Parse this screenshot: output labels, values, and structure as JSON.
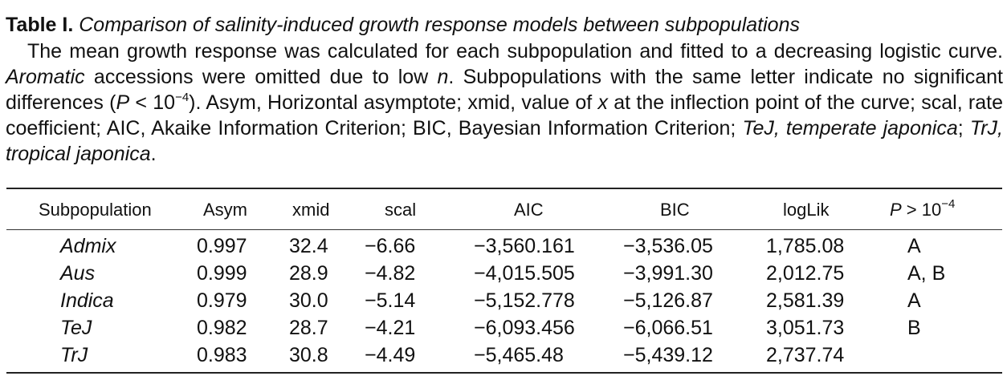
{
  "caption": {
    "label": "Table I.",
    "title": "Comparison of salinity-induced growth response models between subpopulations",
    "desc_1": "The mean growth response was calculated for each subpopulation and fitted to a decreasing logistic curve. ",
    "desc_aromatic": "Aromatic",
    "desc_2": " accessions were omitted due to low ",
    "desc_n": "n",
    "desc_3": ". Subpopulations with the same letter indicate no significant differences (",
    "desc_P": "P",
    "desc_4": " < 10",
    "desc_sup": "−4",
    "desc_5": "). Asym, Horizontal asymptote; xmid, value of ",
    "desc_x": "x",
    "desc_6": " at the inflection point of the curve; scal, rate coefficient; AIC, Akaike Information Criterion; BIC, Bayesian Information Criterion; ",
    "desc_tej": "TeJ, temperate japonica",
    "desc_7": "; ",
    "desc_trj": "TrJ, tropical japonica",
    "desc_8": "."
  },
  "table": {
    "headers": {
      "subpopulation": "Subpopulation",
      "asym": "Asym",
      "xmid": "xmid",
      "scal": "scal",
      "aic": "AIC",
      "bic": "BIC",
      "loglik": "logLik",
      "p_var": "P",
      "p_rest": " > 10",
      "p_sup": "−4"
    },
    "rows": [
      {
        "subpopulation": "Admix",
        "asym": "0.997",
        "xmid": "32.4",
        "scal": "−6.66",
        "aic": "−3,560.161",
        "bic": "−3,536.05",
        "loglik": "1,785.08",
        "p": "A"
      },
      {
        "subpopulation": "Aus",
        "asym": "0.999",
        "xmid": "28.9",
        "scal": "−4.82",
        "aic": "−4,015.505",
        "bic": "−3,991.30",
        "loglik": "2,012.75",
        "p": "A, B"
      },
      {
        "subpopulation": "Indica",
        "asym": "0.979",
        "xmid": "30.0",
        "scal": "−5.14",
        "aic": "−5,152.778",
        "bic": "−5,126.87",
        "loglik": "2,581.39",
        "p": "A"
      },
      {
        "subpopulation": "TeJ",
        "asym": "0.982",
        "xmid": "28.7",
        "scal": "−4.21",
        "aic": "−6,093.456",
        "bic": "−6,066.51",
        "loglik": "3,051.73",
        "p": "B"
      },
      {
        "subpopulation": "TrJ",
        "asym": "0.983",
        "xmid": "30.8",
        "scal": "−4.49",
        "aic": "−5,465.48",
        "bic": "−5,439.12",
        "loglik": "2,737.74",
        "p": ""
      }
    ]
  }
}
